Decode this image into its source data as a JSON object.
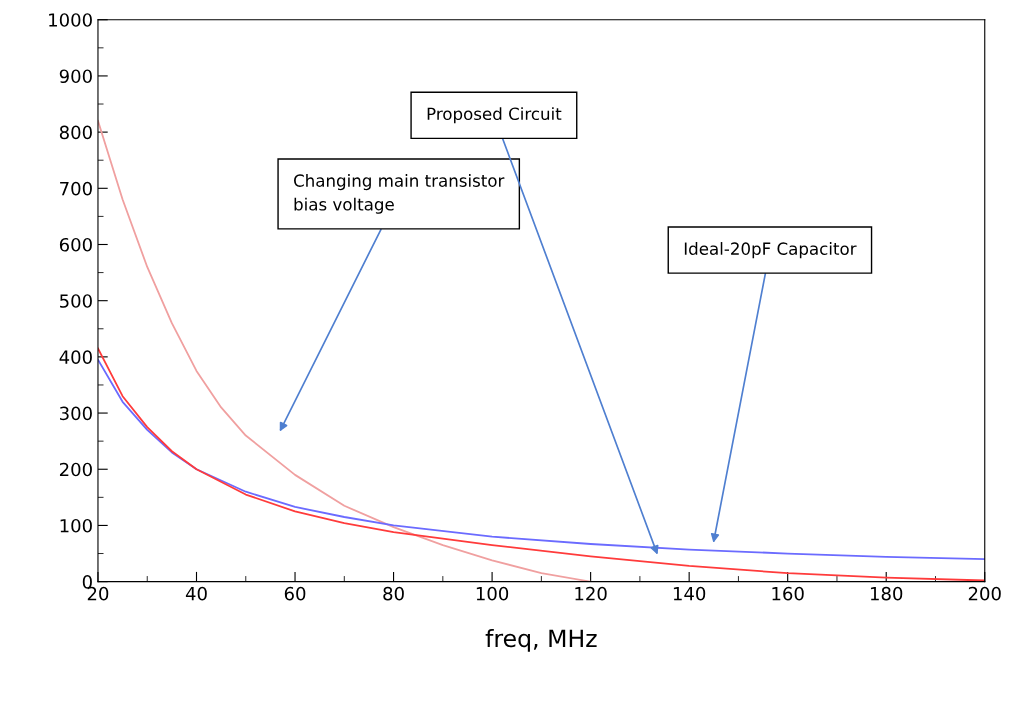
{
  "chart_data": {
    "type": "line",
    "xlabel": "freq, MHz",
    "xlim": [
      20,
      200
    ],
    "xticks": [
      20,
      40,
      60,
      80,
      100,
      120,
      140,
      160,
      180,
      200
    ],
    "ylim": [
      0,
      1000
    ],
    "yticks": [
      0,
      100,
      200,
      300,
      400,
      500,
      600,
      700,
      800,
      900,
      1000
    ],
    "grid": false,
    "legend": false,
    "marker": "none",
    "line_style": "solid",
    "series": [
      {
        "color": "#f0a0a0",
        "x": [
          20,
          25,
          30,
          35,
          40,
          45,
          50,
          60,
          70,
          80,
          90,
          100,
          110,
          120
        ],
        "values": [
          820,
          680,
          560,
          460,
          375,
          310,
          260,
          190,
          135,
          97,
          65,
          38,
          15,
          0
        ]
      },
      {
        "color": "#6b6bff",
        "x": [
          20,
          25,
          30,
          35,
          40,
          50,
          60,
          70,
          80,
          100,
          120,
          140,
          160,
          180,
          200
        ],
        "values": [
          395,
          320,
          270,
          230,
          200,
          160,
          133,
          115,
          100,
          80,
          67,
          57,
          50,
          44,
          40
        ]
      },
      {
        "color": "#ff3b3b",
        "x": [
          20,
          25,
          30,
          35,
          40,
          50,
          60,
          70,
          80,
          100,
          120,
          140,
          160,
          180,
          200
        ],
        "values": [
          415,
          330,
          275,
          232,
          200,
          155,
          125,
          104,
          88,
          65,
          45,
          28,
          15,
          7,
          2
        ]
      }
    ],
    "annotations": [
      "Changing main transistor\nbias voltage",
      "Proposed Circuit",
      "Ideal-20pF Capacitor"
    ]
  }
}
